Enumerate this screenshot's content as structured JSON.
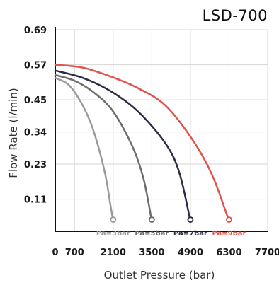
{
  "chart_data": {
    "type": "line",
    "title": "LSD-700",
    "xlabel": "Outlet Pressure (bar)",
    "ylabel": "Flow Rate  (l/min)",
    "xlim": [
      0,
      7700
    ],
    "ylim": [
      0,
      0.69
    ],
    "x_ticks": [
      "0",
      "700",
      "2100",
      "3500",
      "4900",
      "6300",
      "7700"
    ],
    "x_tick_values": [
      0,
      700,
      2100,
      3500,
      4900,
      6300,
      7700
    ],
    "y_ticks": [
      "0.11",
      "0.23",
      "0.34",
      "0.45",
      "0.57",
      "0.69"
    ],
    "y_tick_values": [
      0.11,
      0.23,
      0.34,
      0.45,
      0.57,
      0.69
    ],
    "grid": true,
    "series": [
      {
        "name": "Pa=3bar",
        "color": "#9a9a9a",
        "x": [
          0,
          500,
          1000,
          1400,
          1800,
          2000,
          2100
        ],
        "y": [
          0.525,
          0.5,
          0.43,
          0.34,
          0.2,
          0.09,
          0.035
        ]
      },
      {
        "name": "Pa=5bar",
        "color": "#6d6d6d",
        "x": [
          0,
          700,
          1400,
          2100,
          2800,
          3200,
          3500
        ],
        "y": [
          0.535,
          0.515,
          0.475,
          0.41,
          0.29,
          0.18,
          0.035
        ]
      },
      {
        "name": "Pa=7bar",
        "color": "#2b2d42",
        "x": [
          0,
          1000,
          2000,
          3000,
          4000,
          4500,
          4900
        ],
        "y": [
          0.55,
          0.525,
          0.48,
          0.41,
          0.3,
          0.2,
          0.035
        ]
      },
      {
        "name": "Pa=9bar",
        "color": "#e0534a",
        "x": [
          0,
          1000,
          2000,
          3000,
          4000,
          5000,
          5700,
          6300
        ],
        "y": [
          0.57,
          0.56,
          0.53,
          0.49,
          0.43,
          0.31,
          0.19,
          0.035
        ]
      }
    ]
  }
}
